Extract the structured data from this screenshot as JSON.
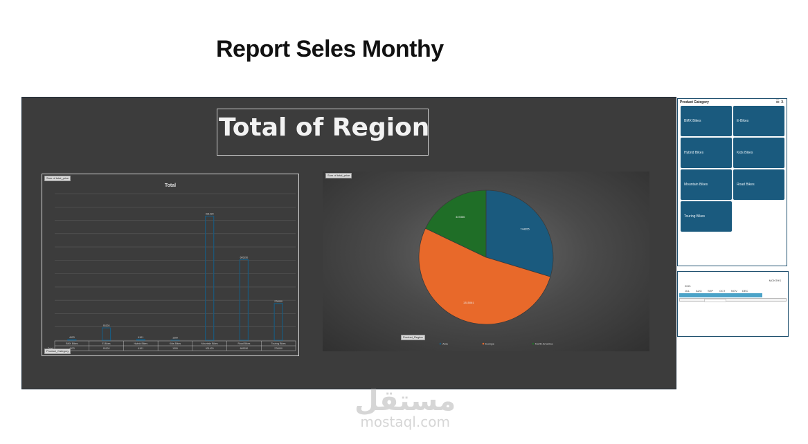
{
  "page": {
    "title": "Report Seles Monthy"
  },
  "dashboard": {
    "region_title": "Total of Region"
  },
  "bar_panel": {
    "field_button": "Sum of total_price",
    "row_field_button": "Product_Category",
    "table_row_label": "Total",
    "table_values": [
      "4923",
      "93120",
      "6101",
      "1300",
      "931420",
      "605250",
      "276000"
    ]
  },
  "pie_panel": {
    "field_button": "Sum of total_price",
    "row_field_button": "Product_Region"
  },
  "slicer": {
    "header": "Product Category",
    "items": [
      "BMX Bikes",
      "E-Bikes",
      "Hybrid Bikes",
      "Kids Bikes",
      "Mountain Bikes",
      "Road Bikes",
      "Touring Bikes"
    ],
    "selected_color": "#1a5a7e"
  },
  "timeline": {
    "header": "MONTHS",
    "year": "2021",
    "months": [
      "JUL",
      "AUG",
      "SEP",
      "OCT",
      "NOV",
      "DEC"
    ]
  },
  "watermark": {
    "arabic": "مستقل",
    "latin": "mostaql.com"
  },
  "chart_data": [
    {
      "type": "bar",
      "title": "Total",
      "categories": [
        "BMX Bikes",
        "E-Bikes",
        "Hybrid Bikes",
        "Kids Bikes",
        "Mountain Bikes",
        "Road Bikes",
        "Touring Bikes"
      ],
      "values": [
        4923,
        93120,
        6101,
        1300,
        931420,
        605250,
        276000
      ],
      "labels": [
        "4923",
        "93120",
        "6101",
        "1300",
        "931420",
        "605250",
        "276000"
      ],
      "ylim": [
        0,
        1100000
      ],
      "grid": true,
      "bar_color": "#1a5a7e"
    },
    {
      "type": "pie",
      "categories": [
        "Asia",
        "Europe",
        "North America"
      ],
      "values": [
        744655,
        1315061,
        449366
      ],
      "labels": [
        "744655",
        "1315061",
        "449366"
      ],
      "colors": [
        "#1a5a7e",
        "#e8692a",
        "#1f6e27"
      ],
      "legend": "bottom"
    }
  ]
}
